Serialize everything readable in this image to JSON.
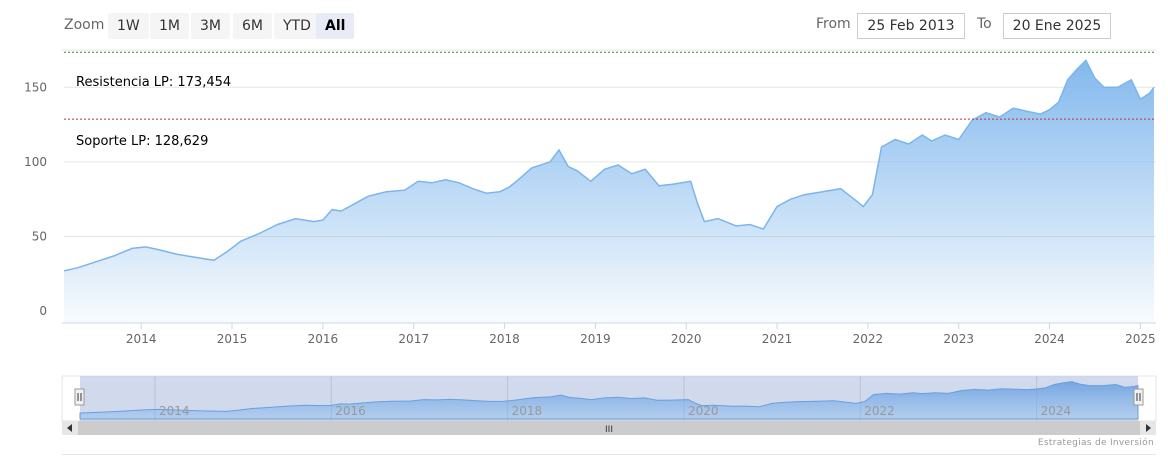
{
  "range_selector": {
    "zoom_label": "Zoom",
    "buttons": [
      "1W",
      "1M",
      "3M",
      "6M",
      "YTD",
      "All"
    ],
    "active": "All"
  },
  "date_inputs": {
    "from_label": "From",
    "from_value": "25 Feb 2013",
    "to_label": "To",
    "to_value": "20 Ene 2025"
  },
  "levels": {
    "resistance_label": "Resistencia LP: 173,454",
    "resistance_value": 173.454,
    "resistance_color": "#2e8b2e",
    "support_label": "Soporte LP: 128,629",
    "support_value": 128.629,
    "support_color": "#c03030"
  },
  "navigator": {
    "year_labels": [
      "2014",
      "2016",
      "2018",
      "2020",
      "2022",
      "2024"
    ],
    "scroll_grip": "III"
  },
  "credits": "Estrategias de Inversión",
  "colors": {
    "line": "#7cb5ec",
    "grid": "#e6e6e6"
  },
  "chart_data": {
    "type": "area",
    "x_unit": "year",
    "y_ticks": [
      0,
      50,
      100,
      150
    ],
    "x_tick_labels": [
      "2014",
      "2015",
      "2016",
      "2017",
      "2018",
      "2019",
      "2020",
      "2021",
      "2022",
      "2023",
      "2024",
      "2025"
    ],
    "ylim": [
      -8,
      175
    ],
    "xlim": [
      2013.15,
      2025.15
    ],
    "series": [
      {
        "x": [
          2013.15,
          2013.3,
          2013.5,
          2013.7,
          2013.9,
          2014.05,
          2014.2,
          2014.4,
          2014.6,
          2014.8,
          2014.95,
          2015.1,
          2015.3,
          2015.5,
          2015.7,
          2015.9,
          2016.0,
          2016.1,
          2016.2,
          2016.35,
          2016.5,
          2016.7,
          2016.9,
          2017.05,
          2017.2,
          2017.35,
          2017.5,
          2017.65,
          2017.8,
          2017.95,
          2018.05,
          2018.15,
          2018.3,
          2018.5,
          2018.6,
          2018.7,
          2018.8,
          2018.95,
          2019.1,
          2019.25,
          2019.4,
          2019.55,
          2019.7,
          2019.85,
          2019.95,
          2020.05,
          2020.12,
          2020.2,
          2020.35,
          2020.55,
          2020.7,
          2020.85,
          2021.0,
          2021.15,
          2021.3,
          2021.5,
          2021.7,
          2021.85,
          2021.95,
          2022.05,
          2022.15,
          2022.3,
          2022.45,
          2022.6,
          2022.7,
          2022.85,
          2023.0,
          2023.15,
          2023.3,
          2023.45,
          2023.6,
          2023.75,
          2023.9,
          2024.0,
          2024.1,
          2024.2,
          2024.3,
          2024.4,
          2024.5,
          2024.6,
          2024.75,
          2024.9,
          2025.0,
          2025.1,
          2025.15
        ],
        "y": [
          27,
          29,
          33,
          37,
          42,
          43,
          41,
          38,
          36,
          34,
          40,
          47,
          52,
          58,
          62,
          60,
          61,
          68,
          67,
          72,
          77,
          80,
          81,
          87,
          86,
          88,
          86,
          82,
          79,
          80,
          83,
          88,
          96,
          100,
          108,
          97,
          94,
          87,
          95,
          98,
          92,
          95,
          84,
          85,
          86,
          87,
          73,
          60,
          62,
          57,
          58,
          55,
          70,
          75,
          78,
          80,
          82,
          75,
          70,
          78,
          110,
          115,
          112,
          118,
          114,
          118,
          115,
          128,
          133,
          130,
          136,
          134,
          132,
          135,
          140,
          155,
          162,
          168,
          156,
          150,
          150,
          155,
          142,
          146,
          150
        ]
      }
    ]
  }
}
